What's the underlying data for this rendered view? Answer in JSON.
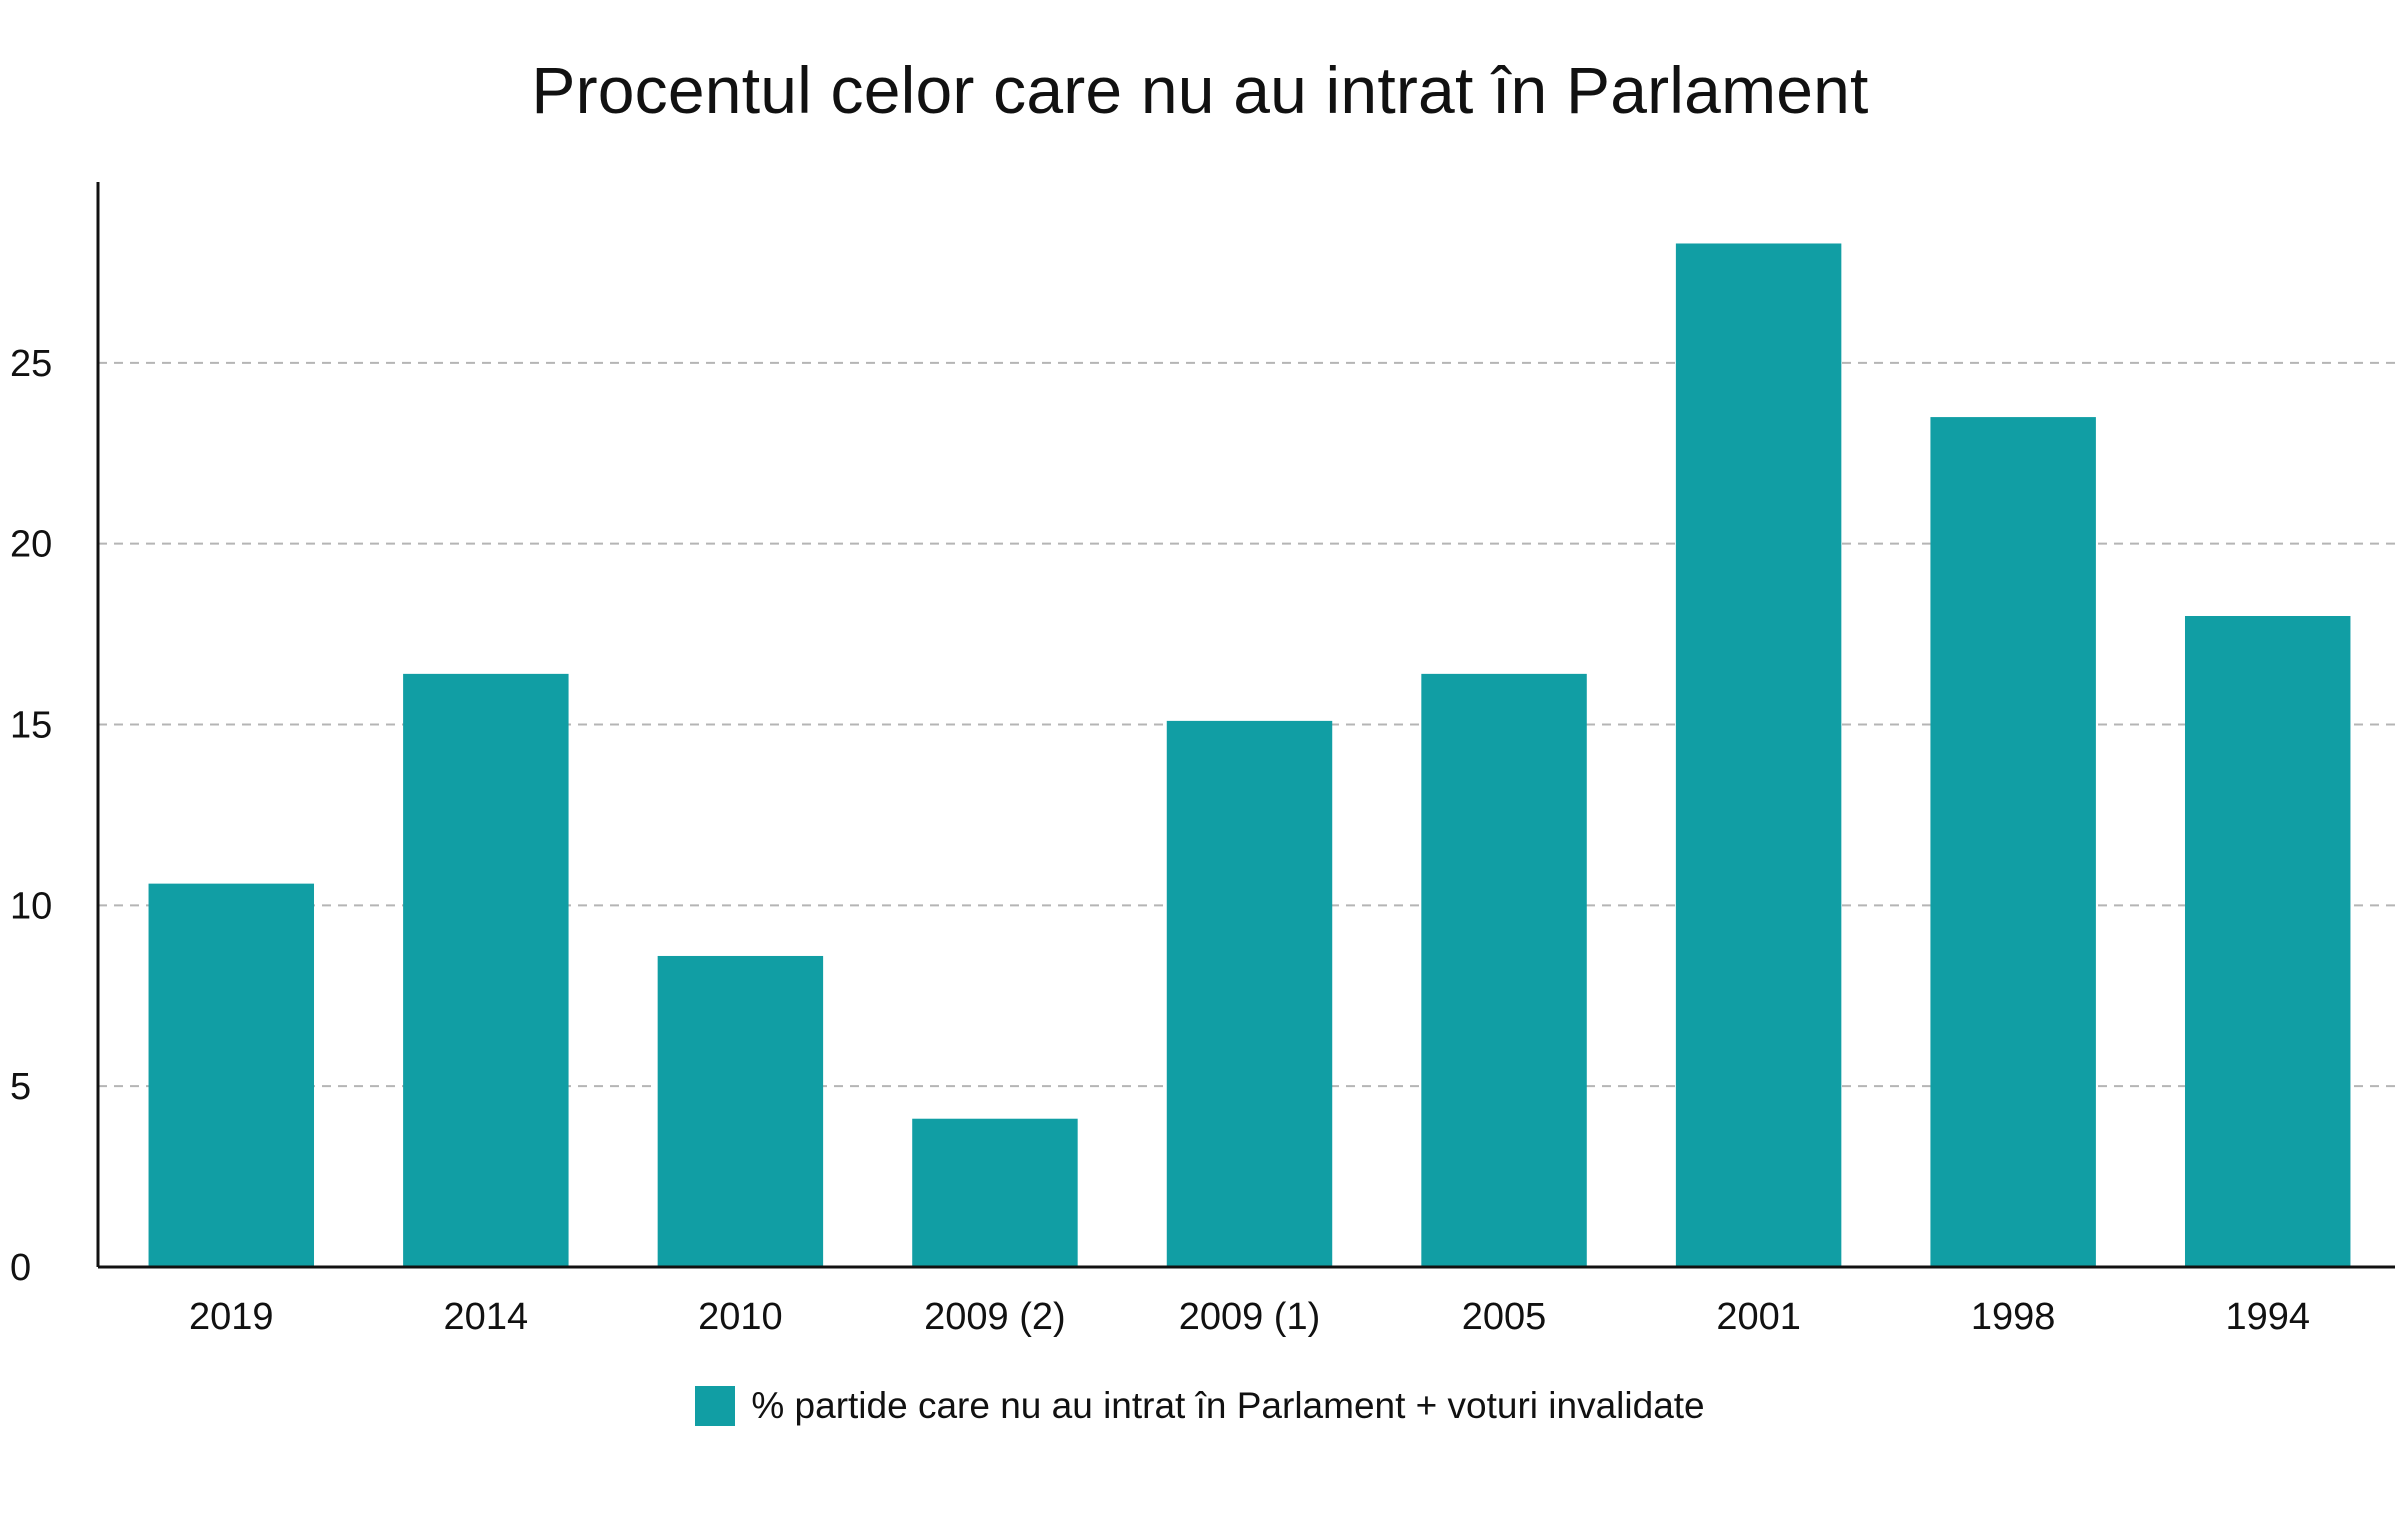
{
  "chart_data": {
    "type": "bar",
    "title": "Procentul celor care nu au intrat în Parlament",
    "categories": [
      "2019",
      "2014",
      "2010",
      "2009 (2)",
      "2009 (1)",
      "2005",
      "2001",
      "1998",
      "1994"
    ],
    "series": [
      {
        "name": "% partide care nu au intrat în Parlament + voturi invalidate",
        "color": "#119ea4",
        "values": [
          10.6,
          16.4,
          8.6,
          4.1,
          15.1,
          16.4,
          28.3,
          23.5,
          18.0
        ]
      }
    ],
    "xlabel": "",
    "ylabel": "",
    "ylim": [
      0,
      30
    ],
    "yticks": [
      0,
      5,
      10,
      15,
      20,
      25
    ],
    "grid": "horizontal-dashed",
    "legend_position": "bottom-center"
  }
}
